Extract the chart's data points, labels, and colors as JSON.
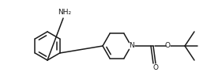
{
  "bg_color": "#ffffff",
  "line_color": "#1a1a1a",
  "line_width": 1.1,
  "text_color": "#1a1a1a",
  "fig_width": 2.57,
  "fig_height": 1.01,
  "dpi": 100,
  "nh2_label": "NH₂",
  "N_label": "N",
  "O_carbonyl_label": "O",
  "O_ether_label": "O",
  "nh2_fontsize": 6.5,
  "N_fontsize": 6.5,
  "O_fontsize": 6.5
}
